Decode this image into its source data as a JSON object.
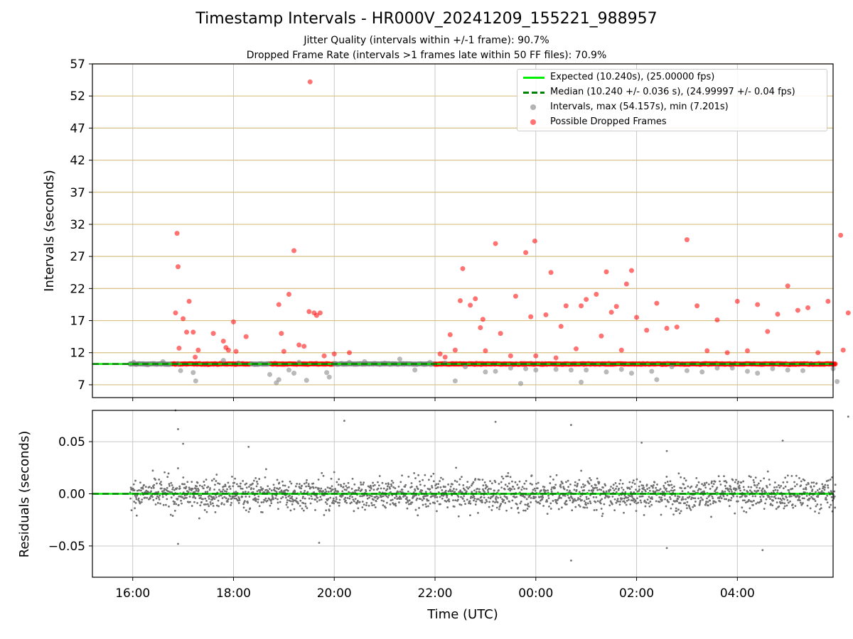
{
  "chart_data": [
    {
      "type": "scatter",
      "title": "Timestamp Intervals - HR000V_20241209_155221_988957",
      "subtitle_1": "Jitter Quality (intervals within +/-1 frame): 90.7%",
      "subtitle_2": "Dropped Frame Rate (intervals >1 frames late within 50 FF files): 70.9%",
      "ylabel": "Intervals (seconds)",
      "ylim": [
        5,
        57
      ],
      "yticks": [
        "7",
        "12",
        "17",
        "22",
        "27",
        "32",
        "37",
        "42",
        "47",
        "52",
        "57"
      ],
      "grid": "on",
      "legend_position": "top-right",
      "legend": {
        "expected": "Expected (10.240s), (25.00000 fps)",
        "median": "Median (10.240 +/- 0.036 s), (24.99997 +/- 0.04 fps)",
        "intervals": "Intervals, max (54.157s), min (7.201s)",
        "dropped": "Possible Dropped Frames"
      },
      "series": [
        {
          "name": "Expected (10.240s), (25.00000 fps)",
          "kind": "line",
          "value": 10.24,
          "color": "#00ee00"
        },
        {
          "name": "Median (10.240 +/- 0.036 s), (24.99997 +/- 0.04 fps)",
          "kind": "dashed-line",
          "value": 10.24,
          "color": "#008000"
        },
        {
          "name": "Intervals, max (54.157s), min (7.201s)",
          "kind": "scatter",
          "color": "#808080",
          "points_hours_since_1600": [
            [
              -0.05,
              10.2
            ],
            [
              0.02,
              10.5
            ],
            [
              0.3,
              10.1
            ],
            [
              0.6,
              10.6
            ],
            [
              0.9,
              10.3
            ],
            [
              0.95,
              9.2
            ],
            [
              1.2,
              8.9
            ],
            [
              1.25,
              7.6
            ],
            [
              1.8,
              10.8
            ],
            [
              2.1,
              10.4
            ],
            [
              2.5,
              10.2
            ],
            [
              2.72,
              8.6
            ],
            [
              2.85,
              7.3
            ],
            [
              2.9,
              7.8
            ],
            [
              3.1,
              9.3
            ],
            [
              3.2,
              8.8
            ],
            [
              3.3,
              10.5
            ],
            [
              3.45,
              7.7
            ],
            [
              3.85,
              8.9
            ],
            [
              3.9,
              8.2
            ],
            [
              4.3,
              10.5
            ],
            [
              4.6,
              10.6
            ],
            [
              5.0,
              10.4
            ],
            [
              5.3,
              11.0
            ],
            [
              5.6,
              9.3
            ],
            [
              5.9,
              10.5
            ],
            [
              6.2,
              10.4
            ],
            [
              6.4,
              7.6
            ],
            [
              6.6,
              9.8
            ],
            [
              7.0,
              9.0
            ],
            [
              7.2,
              9.1
            ],
            [
              7.5,
              9.6
            ],
            [
              7.7,
              7.2
            ],
            [
              7.8,
              9.5
            ],
            [
              8.0,
              9.3
            ],
            [
              8.4,
              9.4
            ],
            [
              8.7,
              9.3
            ],
            [
              8.9,
              7.4
            ],
            [
              9.0,
              9.3
            ],
            [
              9.4,
              9.0
            ],
            [
              9.7,
              9.4
            ],
            [
              9.9,
              8.8
            ],
            [
              10.3,
              9.1
            ],
            [
              10.4,
              7.8
            ],
            [
              10.7,
              9.8
            ],
            [
              11.0,
              9.2
            ],
            [
              11.3,
              9.0
            ],
            [
              11.6,
              9.6
            ],
            [
              11.9,
              9.6
            ],
            [
              12.2,
              9.1
            ],
            [
              12.4,
              8.8
            ],
            [
              12.7,
              9.5
            ],
            [
              13.0,
              9.3
            ],
            [
              13.3,
              9.2
            ],
            [
              13.9,
              9.5
            ],
            [
              13.98,
              7.5
            ]
          ]
        },
        {
          "name": "Possible Dropped Frames",
          "kind": "scatter",
          "color": "#ff0000",
          "points_hours_since_1600": [
            [
              0.85,
              18.2
            ],
            [
              0.88,
              30.6
            ],
            [
              0.9,
              25.4
            ],
            [
              0.92,
              12.7
            ],
            [
              1.0,
              17.3
            ],
            [
              1.07,
              15.2
            ],
            [
              1.12,
              20.0
            ],
            [
              1.2,
              15.2
            ],
            [
              1.24,
              11.3
            ],
            [
              1.3,
              12.4
            ],
            [
              1.6,
              15.0
            ],
            [
              1.8,
              13.8
            ],
            [
              1.85,
              12.8
            ],
            [
              1.9,
              12.4
            ],
            [
              2.0,
              16.8
            ],
            [
              2.05,
              12.2
            ],
            [
              2.25,
              14.5
            ],
            [
              2.9,
              19.5
            ],
            [
              2.95,
              15.0
            ],
            [
              3.0,
              12.2
            ],
            [
              3.1,
              21.1
            ],
            [
              3.2,
              27.9
            ],
            [
              3.3,
              13.2
            ],
            [
              3.4,
              13.0
            ],
            [
              3.5,
              18.4
            ],
            [
              3.6,
              18.2
            ],
            [
              3.65,
              17.8
            ],
            [
              3.72,
              18.2
            ],
            [
              3.8,
              11.5
            ],
            [
              3.52,
              54.2
            ],
            [
              4.3,
              12.0
            ],
            [
              4.0,
              11.8
            ],
            [
              6.1,
              11.8
            ],
            [
              6.2,
              11.3
            ],
            [
              6.3,
              14.8
            ],
            [
              6.4,
              12.4
            ],
            [
              6.5,
              20.1
            ],
            [
              6.55,
              25.1
            ],
            [
              6.7,
              19.4
            ],
            [
              6.8,
              20.4
            ],
            [
              6.9,
              15.9
            ],
            [
              6.95,
              17.2
            ],
            [
              7.0,
              12.3
            ],
            [
              7.2,
              29.0
            ],
            [
              7.3,
              15.0
            ],
            [
              7.5,
              11.5
            ],
            [
              7.6,
              20.8
            ],
            [
              7.8,
              27.6
            ],
            [
              7.9,
              17.6
            ],
            [
              7.98,
              29.4
            ],
            [
              8.0,
              11.5
            ],
            [
              8.2,
              17.9
            ],
            [
              8.3,
              24.5
            ],
            [
              8.4,
              11.2
            ],
            [
              8.5,
              16.1
            ],
            [
              8.6,
              19.3
            ],
            [
              8.8,
              12.6
            ],
            [
              8.9,
              19.3
            ],
            [
              9.0,
              20.3
            ],
            [
              9.2,
              21.1
            ],
            [
              9.3,
              14.6
            ],
            [
              9.4,
              24.6
            ],
            [
              9.5,
              18.3
            ],
            [
              9.6,
              19.2
            ],
            [
              9.7,
              12.4
            ],
            [
              9.8,
              22.7
            ],
            [
              9.9,
              24.8
            ],
            [
              10.0,
              17.5
            ],
            [
              10.2,
              15.5
            ],
            [
              10.4,
              19.7
            ],
            [
              10.6,
              15.8
            ],
            [
              10.8,
              16.0
            ],
            [
              11.0,
              29.6
            ],
            [
              11.2,
              19.3
            ],
            [
              11.4,
              12.3
            ],
            [
              11.6,
              17.1
            ],
            [
              11.8,
              12.0
            ],
            [
              12.0,
              20.0
            ],
            [
              12.2,
              12.3
            ],
            [
              12.4,
              19.5
            ],
            [
              12.6,
              15.3
            ],
            [
              12.8,
              18.0
            ],
            [
              13.0,
              22.4
            ],
            [
              13.2,
              18.6
            ],
            [
              13.4,
              19.0
            ],
            [
              13.6,
              12.0
            ],
            [
              13.8,
              20.0
            ],
            [
              14.05,
              30.3
            ],
            [
              14.1,
              12.4
            ],
            [
              14.2,
              18.2
            ],
            [
              14.4,
              22.0
            ],
            [
              14.5,
              15.6
            ],
            [
              14.7,
              18.6
            ],
            [
              14.9,
              21.4
            ],
            [
              15.0,
              13.8
            ],
            [
              15.1,
              17.2
            ],
            [
              15.2,
              12.5
            ],
            [
              15.4,
              25.6
            ],
            [
              15.5,
              25.2
            ],
            [
              15.6,
              18.7
            ],
            [
              15.75,
              16.0
            ],
            [
              15.9,
              27.6
            ],
            [
              16.0,
              19.2
            ],
            [
              16.1,
              21.4
            ],
            [
              16.2,
              22.3
            ],
            [
              16.3,
              19.5
            ],
            [
              16.4,
              16.9
            ],
            [
              16.35,
              12.3
            ]
          ]
        }
      ]
    },
    {
      "type": "scatter",
      "xlabel": "Time (UTC)",
      "ylabel": "Residuals (seconds)",
      "ylim": [
        -0.08,
        0.08
      ],
      "yticks": [
        "0.05",
        "0.00",
        "−0.05"
      ],
      "xticks": [
        "16:00",
        "18:00",
        "20:00",
        "22:00",
        "00:00",
        "02:00",
        "04:00"
      ],
      "xlim_hours_since_1600": [
        -0.8,
        13.9
      ],
      "series": [
        {
          "name": "Residuals",
          "kind": "scatter",
          "color": "#707070",
          "spread_std": 0.011,
          "outliers_hours_since_1600": [
            [
              0.85,
              0.08
            ],
            [
              0.9,
              0.062
            ],
            [
              1.0,
              0.048
            ],
            [
              2.3,
              0.045
            ],
            [
              4.2,
              0.07
            ],
            [
              7.2,
              0.069
            ],
            [
              8.7,
              0.066
            ],
            [
              10.1,
              0.049
            ],
            [
              10.6,
              0.041
            ],
            [
              12.9,
              0.051
            ],
            [
              14.2,
              0.074
            ],
            [
              15.2,
              0.068
            ],
            [
              8.7,
              -0.064
            ],
            [
              10.6,
              -0.052
            ],
            [
              12.5,
              -0.054
            ],
            [
              3.7,
              -0.047
            ],
            [
              0.9,
              -0.048
            ],
            [
              15.1,
              -0.08
            ]
          ]
        },
        {
          "name": "Expected",
          "kind": "line",
          "value": 0.0,
          "color": "#00ee00"
        },
        {
          "name": "Median",
          "kind": "dashed-line",
          "value": 0.0,
          "color": "#008000"
        }
      ]
    }
  ]
}
